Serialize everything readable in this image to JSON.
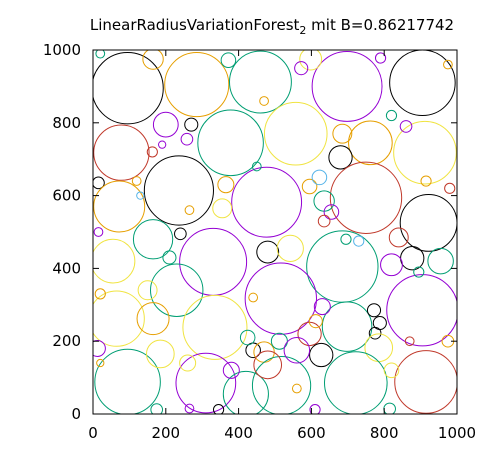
{
  "chart_data": {
    "type": "scatter",
    "title": {
      "main": "LinearRadiusVariationForest",
      "subscript": "2",
      "suffix": " mit B=0.86217742"
    },
    "xlabel": "",
    "ylabel": "",
    "xlim": [
      0,
      1000
    ],
    "ylim": [
      0,
      1000
    ],
    "xticks": [
      "0",
      "200",
      "400",
      "600",
      "800",
      "1000"
    ],
    "yticks": [
      "0",
      "200",
      "400",
      "600",
      "800",
      "1000"
    ],
    "grid": false,
    "colors": {
      "purple": "#9400d3",
      "teal": "#009e73",
      "cyan": "#56b4e9",
      "orange": "#e69f00",
      "yellow": "#f0e442",
      "blue": "#0072b2",
      "red": "#c0392b",
      "black": "#000000"
    },
    "circles": [
      {
        "x": 95,
        "y": 895,
        "r": 98,
        "color": "black"
      },
      {
        "x": 285,
        "y": 905,
        "r": 88,
        "color": "orange"
      },
      {
        "x": 460,
        "y": 912,
        "r": 85,
        "color": "teal"
      },
      {
        "x": 698,
        "y": 900,
        "r": 96,
        "color": "purple"
      },
      {
        "x": 905,
        "y": 910,
        "r": 90,
        "color": "black"
      },
      {
        "x": 165,
        "y": 975,
        "r": 28,
        "color": "orange"
      },
      {
        "x": 598,
        "y": 975,
        "r": 30,
        "color": "yellow"
      },
      {
        "x": 572,
        "y": 950,
        "r": 18,
        "color": "purple"
      },
      {
        "x": 372,
        "y": 972,
        "r": 20,
        "color": "teal"
      },
      {
        "x": 790,
        "y": 978,
        "r": 14,
        "color": "purple"
      },
      {
        "x": 20,
        "y": 990,
        "r": 12,
        "color": "teal"
      },
      {
        "x": 78,
        "y": 718,
        "r": 76,
        "color": "red"
      },
      {
        "x": 200,
        "y": 795,
        "r": 34,
        "color": "purple"
      },
      {
        "x": 378,
        "y": 745,
        "r": 90,
        "color": "teal"
      },
      {
        "x": 557,
        "y": 770,
        "r": 86,
        "color": "yellow"
      },
      {
        "x": 762,
        "y": 745,
        "r": 60,
        "color": "orange"
      },
      {
        "x": 912,
        "y": 718,
        "r": 86,
        "color": "yellow"
      },
      {
        "x": 270,
        "y": 795,
        "r": 18,
        "color": "black"
      },
      {
        "x": 258,
        "y": 755,
        "r": 16,
        "color": "purple"
      },
      {
        "x": 680,
        "y": 705,
        "r": 32,
        "color": "black"
      },
      {
        "x": 685,
        "y": 770,
        "r": 26,
        "color": "orange"
      },
      {
        "x": 163,
        "y": 720,
        "r": 14,
        "color": "red"
      },
      {
        "x": 15,
        "y": 635,
        "r": 16,
        "color": "black"
      },
      {
        "x": 72,
        "y": 570,
        "r": 70,
        "color": "orange"
      },
      {
        "x": 236,
        "y": 614,
        "r": 95,
        "color": "black"
      },
      {
        "x": 477,
        "y": 582,
        "r": 96,
        "color": "purple"
      },
      {
        "x": 750,
        "y": 594,
        "r": 98,
        "color": "red"
      },
      {
        "x": 922,
        "y": 525,
        "r": 78,
        "color": "black"
      },
      {
        "x": 635,
        "y": 585,
        "r": 28,
        "color": "teal"
      },
      {
        "x": 595,
        "y": 625,
        "r": 20,
        "color": "orange"
      },
      {
        "x": 365,
        "y": 630,
        "r": 22,
        "color": "orange"
      },
      {
        "x": 355,
        "y": 565,
        "r": 26,
        "color": "yellow"
      },
      {
        "x": 622,
        "y": 650,
        "r": 20,
        "color": "cyan"
      },
      {
        "x": 655,
        "y": 555,
        "r": 20,
        "color": "purple"
      },
      {
        "x": 635,
        "y": 530,
        "r": 16,
        "color": "red"
      },
      {
        "x": 840,
        "y": 485,
        "r": 26,
        "color": "red"
      },
      {
        "x": 240,
        "y": 495,
        "r": 16,
        "color": "black"
      },
      {
        "x": 165,
        "y": 480,
        "r": 54,
        "color": "teal"
      },
      {
        "x": 55,
        "y": 420,
        "r": 60,
        "color": "yellow"
      },
      {
        "x": 330,
        "y": 418,
        "r": 92,
        "color": "purple"
      },
      {
        "x": 480,
        "y": 445,
        "r": 30,
        "color": "black"
      },
      {
        "x": 542,
        "y": 455,
        "r": 36,
        "color": "yellow"
      },
      {
        "x": 685,
        "y": 405,
        "r": 98,
        "color": "teal"
      },
      {
        "x": 877,
        "y": 428,
        "r": 32,
        "color": "black"
      },
      {
        "x": 955,
        "y": 420,
        "r": 35,
        "color": "teal"
      },
      {
        "x": 820,
        "y": 410,
        "r": 30,
        "color": "purple"
      },
      {
        "x": 210,
        "y": 430,
        "r": 18,
        "color": "teal"
      },
      {
        "x": 230,
        "y": 340,
        "r": 72,
        "color": "teal"
      },
      {
        "x": 65,
        "y": 262,
        "r": 76,
        "color": "yellow"
      },
      {
        "x": 335,
        "y": 238,
        "r": 88,
        "color": "yellow"
      },
      {
        "x": 516,
        "y": 317,
        "r": 98,
        "color": "purple"
      },
      {
        "x": 698,
        "y": 240,
        "r": 68,
        "color": "teal"
      },
      {
        "x": 905,
        "y": 285,
        "r": 98,
        "color": "purple"
      },
      {
        "x": 772,
        "y": 285,
        "r": 18,
        "color": "black"
      },
      {
        "x": 788,
        "y": 250,
        "r": 18,
        "color": "black"
      },
      {
        "x": 775,
        "y": 222,
        "r": 16,
        "color": "black"
      },
      {
        "x": 785,
        "y": 182,
        "r": 38,
        "color": "yellow"
      },
      {
        "x": 595,
        "y": 220,
        "r": 32,
        "color": "red"
      },
      {
        "x": 627,
        "y": 162,
        "r": 32,
        "color": "black"
      },
      {
        "x": 630,
        "y": 295,
        "r": 22,
        "color": "purple"
      },
      {
        "x": 612,
        "y": 255,
        "r": 18,
        "color": "orange"
      },
      {
        "x": 165,
        "y": 262,
        "r": 44,
        "color": "orange"
      },
      {
        "x": 150,
        "y": 340,
        "r": 26,
        "color": "yellow"
      },
      {
        "x": 440,
        "y": 175,
        "r": 20,
        "color": "black"
      },
      {
        "x": 470,
        "y": 170,
        "r": 28,
        "color": "orange"
      },
      {
        "x": 512,
        "y": 200,
        "r": 22,
        "color": "teal"
      },
      {
        "x": 425,
        "y": 210,
        "r": 20,
        "color": "teal"
      },
      {
        "x": 95,
        "y": 88,
        "r": 90,
        "color": "teal"
      },
      {
        "x": 310,
        "y": 85,
        "r": 82,
        "color": "purple"
      },
      {
        "x": 518,
        "y": 78,
        "r": 80,
        "color": "teal"
      },
      {
        "x": 722,
        "y": 85,
        "r": 86,
        "color": "teal"
      },
      {
        "x": 915,
        "y": 88,
        "r": 86,
        "color": "red"
      },
      {
        "x": 420,
        "y": 55,
        "r": 62,
        "color": "teal"
      },
      {
        "x": 185,
        "y": 165,
        "r": 38,
        "color": "yellow"
      },
      {
        "x": 260,
        "y": 140,
        "r": 22,
        "color": "yellow"
      },
      {
        "x": 380,
        "y": 120,
        "r": 22,
        "color": "purple"
      },
      {
        "x": 480,
        "y": 135,
        "r": 38,
        "color": "red"
      },
      {
        "x": 560,
        "y": 175,
        "r": 35,
        "color": "purple"
      },
      {
        "x": 820,
        "y": 120,
        "r": 20,
        "color": "yellow"
      },
      {
        "x": 12,
        "y": 180,
        "r": 22,
        "color": "purple"
      },
      {
        "x": 175,
        "y": 12,
        "r": 16,
        "color": "teal"
      },
      {
        "x": 345,
        "y": 12,
        "r": 14,
        "color": "black"
      },
      {
        "x": 610,
        "y": 12,
        "r": 14,
        "color": "purple"
      },
      {
        "x": 815,
        "y": 14,
        "r": 16,
        "color": "teal"
      },
      {
        "x": 20,
        "y": 140,
        "r": 10,
        "color": "orange"
      },
      {
        "x": 870,
        "y": 200,
        "r": 12,
        "color": "red"
      },
      {
        "x": 975,
        "y": 200,
        "r": 16,
        "color": "orange"
      },
      {
        "x": 980,
        "y": 620,
        "r": 14,
        "color": "red"
      },
      {
        "x": 975,
        "y": 960,
        "r": 12,
        "color": "orange"
      },
      {
        "x": 820,
        "y": 820,
        "r": 14,
        "color": "teal"
      },
      {
        "x": 860,
        "y": 790,
        "r": 16,
        "color": "purple"
      },
      {
        "x": 470,
        "y": 860,
        "r": 12,
        "color": "orange"
      },
      {
        "x": 130,
        "y": 600,
        "r": 10,
        "color": "cyan"
      },
      {
        "x": 15,
        "y": 500,
        "r": 12,
        "color": "purple"
      },
      {
        "x": 20,
        "y": 330,
        "r": 14,
        "color": "orange"
      },
      {
        "x": 440,
        "y": 320,
        "r": 12,
        "color": "orange"
      },
      {
        "x": 695,
        "y": 480,
        "r": 14,
        "color": "teal"
      },
      {
        "x": 730,
        "y": 475,
        "r": 14,
        "color": "cyan"
      },
      {
        "x": 265,
        "y": 560,
        "r": 12,
        "color": "orange"
      },
      {
        "x": 120,
        "y": 640,
        "r": 12,
        "color": "orange"
      },
      {
        "x": 915,
        "y": 640,
        "r": 14,
        "color": "orange"
      },
      {
        "x": 190,
        "y": 740,
        "r": 10,
        "color": "purple"
      },
      {
        "x": 450,
        "y": 680,
        "r": 12,
        "color": "teal"
      },
      {
        "x": 895,
        "y": 390,
        "r": 14,
        "color": "teal"
      },
      {
        "x": 560,
        "y": 70,
        "r": 12,
        "color": "orange"
      },
      {
        "x": 265,
        "y": 15,
        "r": 12,
        "color": "purple"
      }
    ]
  }
}
